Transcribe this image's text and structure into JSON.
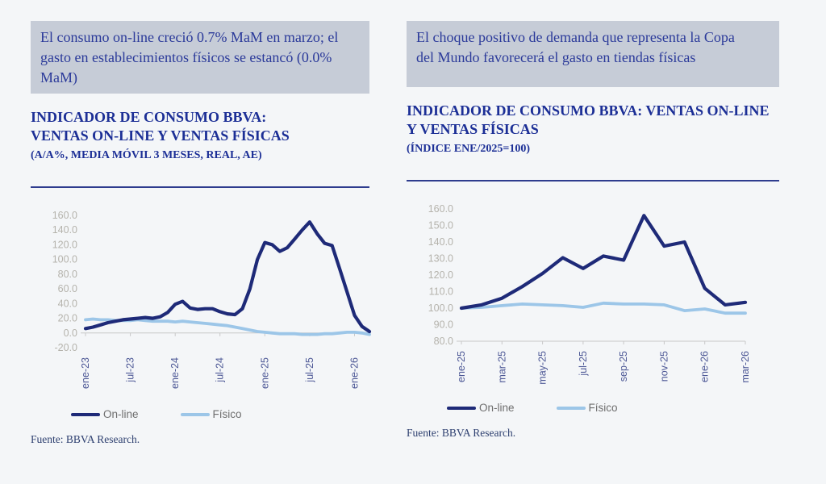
{
  "page": {
    "background": "#f4f6f8"
  },
  "colors": {
    "online_line": "#1e2a78",
    "fisico_line": "#9cc6e8",
    "callout_bg": "#c6ccd7",
    "heading_text": "#1c2f96",
    "callout_text": "#2b3a9a",
    "header_rule": "#2e3c8e",
    "y_axis_label": "#b5b3ac",
    "x_axis_label": "#4d5896",
    "axis_line": "#c8c8c8",
    "legend_text": "#6e6e6e",
    "footer_text": "#2e4070"
  },
  "legend": {
    "online_label": "On-line",
    "fisico_label": "Físico"
  },
  "footer": {
    "source_label": "Fuente: BBVA Research."
  },
  "left_panel": {
    "callout": "El consumo on-line creció 0.7% MaM en marzo; el gasto en establecimientos físicos se estancó (0.0% MaM)",
    "title": "INDICADOR DE CONSUMO BBVA: VENTAS ON-LINE Y VENTAS FÍSICAS",
    "subtitle": "(A/A%, MEDIA MÓVIL 3 MESES, REAL, AE)"
  },
  "right_panel": {
    "callout": "El choque positivo de demanda que representa la Copa del Mundo favorecerá el gasto en tiendas físicas",
    "title": "INDICADOR DE CONSUMO BBVA: VENTAS ON-LINE Y VENTAS FÍSICAS",
    "subtitle": "(ÍNDICE ENE/2025=100)"
  },
  "chart_data": [
    {
      "type": "line",
      "title": "INDICADOR DE CONSUMO BBVA: VENTAS ON-LINE Y VENTAS FÍSICAS",
      "subtitle": "(A/A%, MEDIA MÓVIL 3 MESES, REAL, AE)",
      "xlabel": "",
      "ylabel": "A/A %, media móvil 3 meses, real, AE",
      "ylim": [
        -20,
        160
      ],
      "yticks": [
        160,
        140,
        120,
        100,
        80,
        60,
        40,
        20,
        0,
        -20
      ],
      "baseline": 0,
      "grid": false,
      "legend_position": "bottom",
      "categories": [
        "ene-23",
        "feb-23",
        "mar-23",
        "abr-23",
        "may-23",
        "jun-23",
        "jul-23",
        "ago-23",
        "sep-23",
        "oct-23",
        "nov-23",
        "dic-23",
        "ene-24",
        "feb-24",
        "mar-24",
        "abr-24",
        "may-24",
        "jun-24",
        "jul-24",
        "ago-24",
        "sep-24",
        "oct-24",
        "nov-24",
        "dic-24",
        "ene-25",
        "feb-25",
        "mar-25",
        "abr-25",
        "may-25",
        "jun-25",
        "jul-25",
        "ago-25",
        "sep-25",
        "oct-25",
        "nov-25",
        "dic-25",
        "ene-26",
        "feb-26",
        "mar-26"
      ],
      "xtick_indices": [
        0,
        6,
        12,
        18,
        24,
        30,
        36
      ],
      "xtick_labels": [
        "ene-23",
        "jul-23",
        "ene-24",
        "jul-24",
        "ene-25",
        "jul-25",
        "ene-26"
      ],
      "series": [
        {
          "name": "On-line",
          "color": "#1e2a78",
          "values": [
            6,
            8,
            11,
            14,
            16,
            18,
            19,
            20,
            21,
            20,
            22,
            28,
            39,
            43,
            34,
            32,
            33,
            33,
            29,
            26,
            25,
            33,
            60,
            100,
            123,
            120,
            111,
            116,
            128,
            140,
            151,
            135,
            122,
            119,
            88,
            56,
            24,
            9,
            2
          ]
        },
        {
          "name": "Físico",
          "color": "#9cc6e8",
          "values": [
            18,
            19,
            18,
            18,
            17,
            17,
            17,
            18,
            17,
            16,
            16,
            16,
            15,
            16,
            15,
            14,
            13,
            12,
            11,
            10,
            8,
            6,
            4,
            2,
            1,
            0,
            -1,
            -1,
            -1,
            -2,
            -2,
            -2,
            -1,
            -1,
            0,
            1,
            1,
            0,
            -2
          ]
        }
      ]
    },
    {
      "type": "line",
      "title": "INDICADOR DE CONSUMO BBVA: VENTAS ON-LINE Y VENTAS FÍSICAS",
      "subtitle": "(ÍNDICE ENE/2025=100)",
      "xlabel": "",
      "ylabel": "Índice ene/2025=100",
      "ylim": [
        80,
        160
      ],
      "yticks": [
        160,
        150,
        140,
        130,
        120,
        110,
        100,
        90,
        80
      ],
      "baseline": 80,
      "grid": false,
      "legend_position": "bottom",
      "categories": [
        "ene-25",
        "feb-25",
        "mar-25",
        "abr-25",
        "may-25",
        "jun-25",
        "jul-25",
        "ago-25",
        "sep-25",
        "oct-25",
        "nov-25",
        "dic-25",
        "ene-26",
        "feb-26",
        "mar-26"
      ],
      "xtick_indices": [
        0,
        2,
        4,
        6,
        8,
        10,
        12,
        14
      ],
      "xtick_labels": [
        "ene-25",
        "mar-25",
        "may-25",
        "jul-25",
        "sep-25",
        "nov-25",
        "ene-26",
        "mar-26"
      ],
      "series": [
        {
          "name": "On-line",
          "color": "#1e2a78",
          "values": [
            100,
            102,
            106,
            113,
            121,
            130.5,
            124,
            131.5,
            129,
            156,
            137.5,
            140,
            112,
            102,
            103.5
          ]
        },
        {
          "name": "Físico",
          "color": "#9cc6e8",
          "values": [
            100,
            100.5,
            101.5,
            102.5,
            102,
            101.5,
            100.5,
            103,
            102.5,
            102.5,
            102,
            98.5,
            99.5,
            97,
            97
          ]
        }
      ]
    }
  ]
}
